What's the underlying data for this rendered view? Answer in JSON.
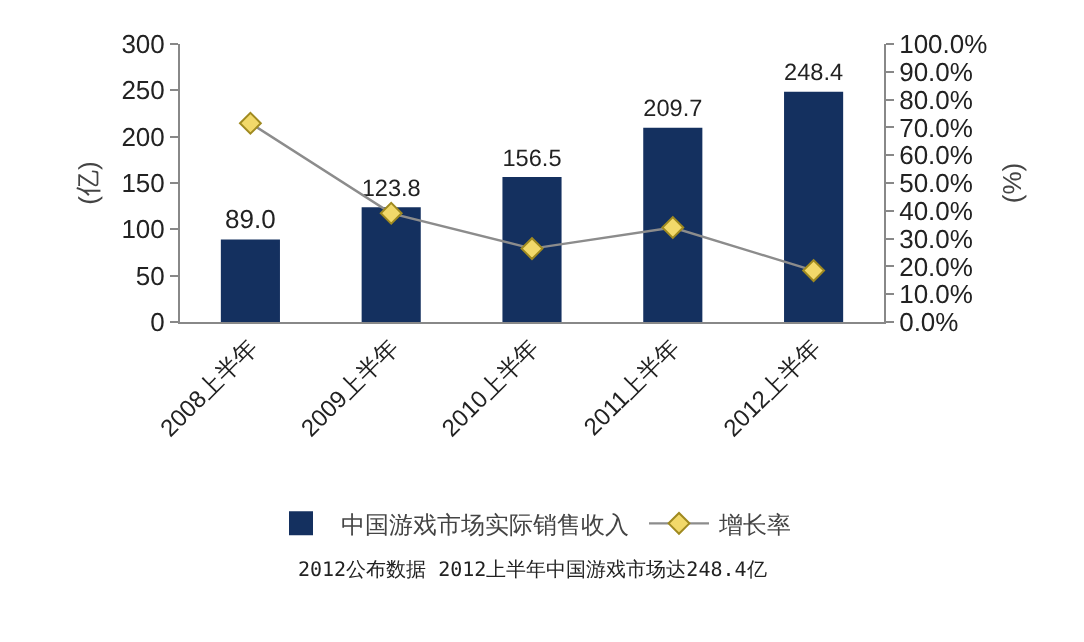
{
  "chart_data": {
    "type": "bar",
    "categories": [
      "2008上半年",
      "2009上半年",
      "2010上半年",
      "2011上半年",
      "2012上半年"
    ],
    "series": [
      {
        "name": "中国游戏市场实际销售收入",
        "color": "#14305f",
        "values": [
          89.0,
          123.8,
          156.5,
          209.7,
          248.4
        ],
        "value_labels": [
          "89.0",
          "123.8",
          "156.5",
          "209.7",
          "248.4"
        ]
      },
      {
        "name": "增长率",
        "type": "line",
        "axis": "y2",
        "color": "#8c8c8c",
        "marker": "diamond",
        "values": [
          71.5,
          39.1,
          26.4,
          34.0,
          18.5
        ]
      }
    ],
    "ylabel": "(亿)",
    "y2label": "(%)",
    "ylim": [
      0,
      300
    ],
    "yticks": [
      0,
      50,
      100,
      150,
      200,
      250,
      300
    ],
    "y2lim": [
      0,
      100
    ],
    "y2ticks": [
      {
        "value": 0,
        "label": "0.0%"
      },
      {
        "value": 10,
        "label": "10.0%"
      },
      {
        "value": 20,
        "label": "20.0%"
      },
      {
        "value": 30,
        "label": "30.0%"
      },
      {
        "value": 40,
        "label": "40.0%"
      },
      {
        "value": 50,
        "label": "50.0%"
      },
      {
        "value": 60,
        "label": "60.0%"
      },
      {
        "value": 70,
        "label": "70.0%"
      },
      {
        "value": 80,
        "label": "80.0%"
      },
      {
        "value": 90,
        "label": "90.0%"
      },
      {
        "value": 100,
        "label": "100.0%"
      }
    ],
    "grid": false,
    "legend": "bottom",
    "annotations": [
      "2012公布数据 2012上半年中国游戏市场达248.4亿"
    ]
  }
}
